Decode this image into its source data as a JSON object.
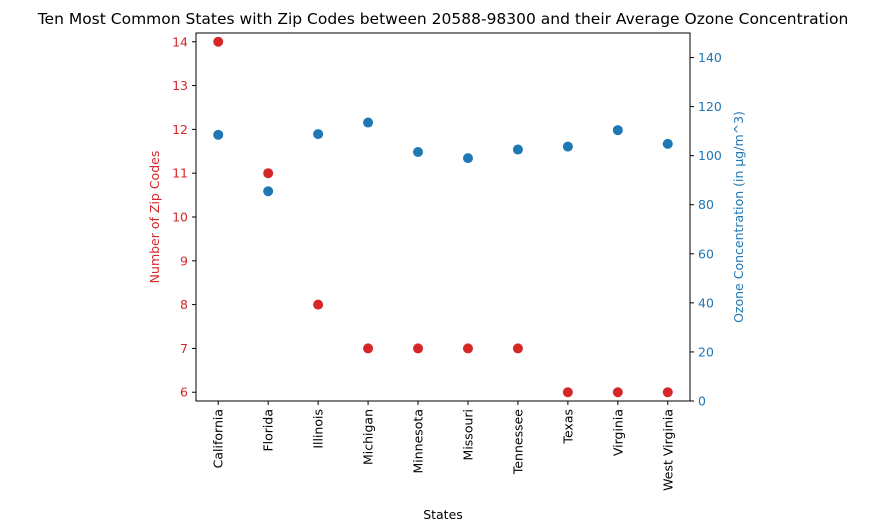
{
  "chart_data": {
    "type": "scatter",
    "title": "Ten Most Common States with Zip Codes between 20588-98300 and their Average Ozone Concentration",
    "xlabel": "States",
    "categories": [
      "California",
      "Florida",
      "Illinois",
      "Michigan",
      "Minnesota",
      "Missouri",
      "Tennessee",
      "Texas",
      "Virginia",
      "West Virginia"
    ],
    "y_left": {
      "label": "Number of Zip Codes",
      "color": "#d62728",
      "ylim": [
        5.8,
        14.2
      ],
      "ticks": [
        6,
        7,
        8,
        9,
        10,
        11,
        12,
        13,
        14
      ]
    },
    "y_right": {
      "label": "Ozone Concentration (in µg/m^3)",
      "color": "#1f77b4",
      "ylim": [
        0,
        150
      ],
      "ticks": [
        0,
        20,
        40,
        60,
        80,
        100,
        120,
        140
      ]
    },
    "series": [
      {
        "axis": "left",
        "color": "#d62728",
        "values": [
          14,
          11,
          8,
          7,
          7,
          7,
          7,
          6,
          6,
          6
        ]
      },
      {
        "axis": "right",
        "color": "#1f77b4",
        "values": [
          108.5,
          85.5,
          108.8,
          113.5,
          101.5,
          99,
          102.5,
          103.7,
          110.4,
          104.8
        ]
      }
    ],
    "grid": false,
    "legend": "none"
  }
}
